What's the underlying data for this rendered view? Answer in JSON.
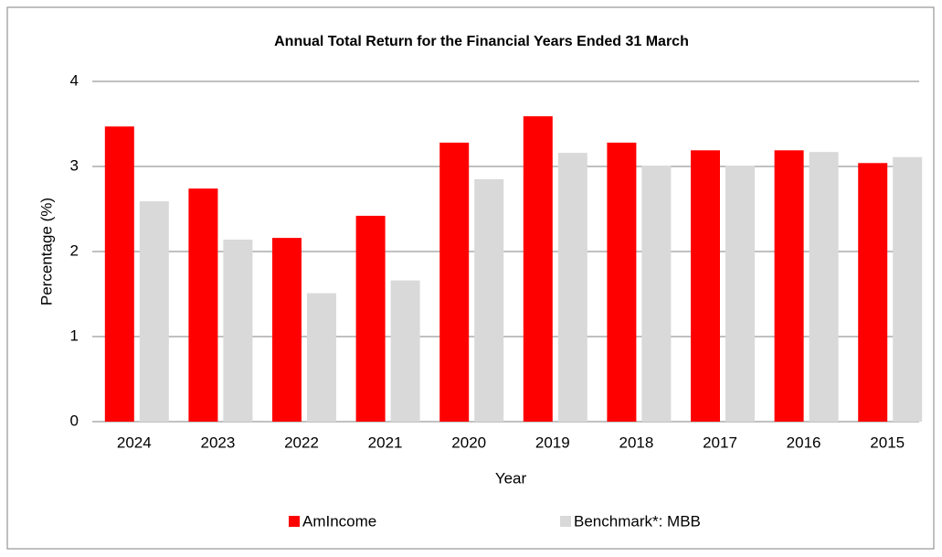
{
  "chart_data": {
    "type": "bar",
    "title": "Annual Total Return for the Financial Years Ended 31 March",
    "x_label": "Year",
    "y_label": "Percentage (%)",
    "categories": [
      "2024",
      "2023",
      "2022",
      "2021",
      "2020",
      "2019",
      "2018",
      "2017",
      "2016",
      "2015"
    ],
    "series": [
      {
        "name": "AmIncome",
        "color": "#ff0000",
        "values": [
          3.47,
          2.74,
          2.16,
          2.42,
          3.28,
          3.59,
          3.28,
          3.19,
          3.19,
          3.04
        ]
      },
      {
        "name": "Benchmark*: MBB",
        "color": "#d9d9d9",
        "values": [
          2.59,
          2.14,
          1.51,
          1.66,
          2.85,
          3.16,
          3.01,
          3.01,
          3.17,
          3.11
        ]
      }
    ],
    "ylim": [
      0,
      4
    ],
    "yticks": [
      0,
      1,
      2,
      3,
      4
    ],
    "grid": true,
    "legend": "bottom"
  }
}
